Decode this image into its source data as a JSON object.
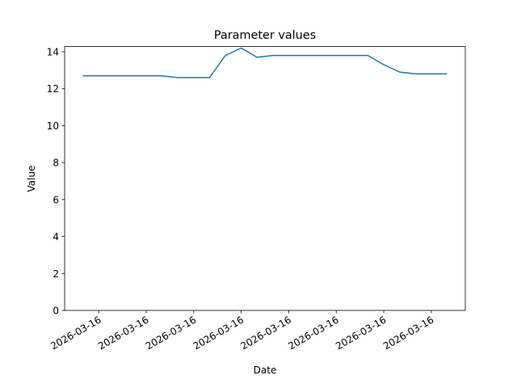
{
  "chart_data": {
    "type": "line",
    "title": "Parameter values",
    "xlabel": "Date",
    "ylabel": "Value",
    "categories": [
      null,
      "2026-03-16",
      null,
      null,
      "2026-03-16",
      null,
      null,
      "2026-03-16",
      null,
      null,
      "2026-03-16",
      null,
      null,
      "2026-03-16",
      null,
      null,
      "2026-03-16",
      null,
      null,
      "2026-03-16",
      null,
      null,
      "2026-03-16",
      null
    ],
    "series": [
      {
        "name": "Value",
        "color": "#1f77b4",
        "values": [
          12.7,
          12.7,
          12.7,
          12.7,
          12.7,
          12.7,
          12.6,
          12.6,
          12.6,
          13.8,
          14.2,
          13.7,
          13.8,
          13.8,
          13.8,
          13.8,
          13.8,
          13.8,
          13.8,
          13.3,
          12.9,
          12.8,
          12.8,
          12.8
        ]
      }
    ],
    "ylim": [
      0,
      14.28
    ],
    "yticks": [
      0,
      2,
      4,
      6,
      8,
      10,
      12,
      14
    ]
  }
}
